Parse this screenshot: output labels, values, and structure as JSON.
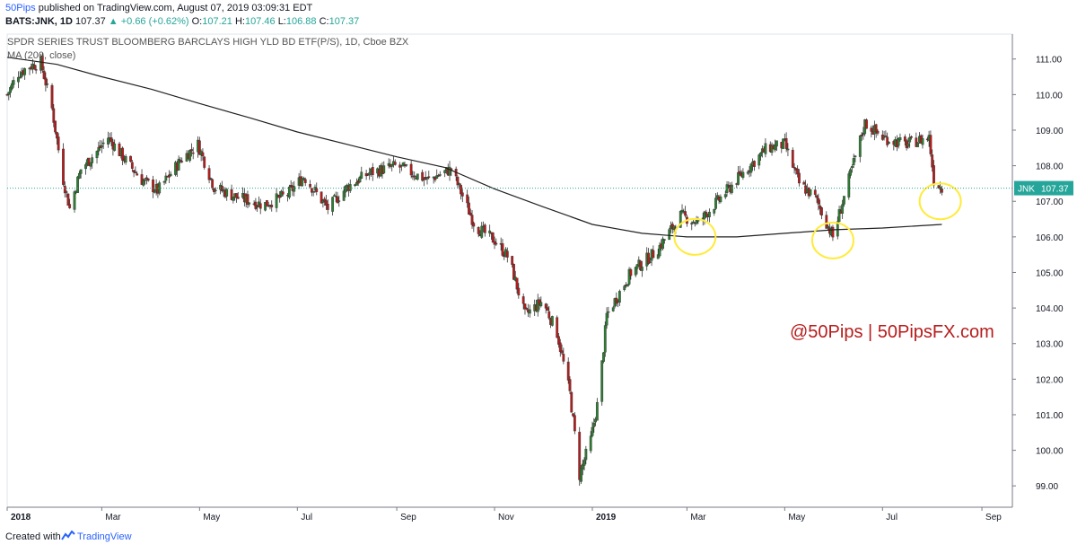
{
  "header": {
    "author": "50Pips",
    "published_text": "published on TradingView.com, August 07, 2019 03:09:31 EDT",
    "symbol_line": "BATS:JNK, 1D",
    "last": "107.37",
    "change": "+0.66 (+0.62%)",
    "o_label": "O:",
    "o_value": "107.21",
    "h_label": "H:",
    "h_value": "107.46",
    "l_label": "L:",
    "l_value": "106.88",
    "c_label": "C:",
    "c_value": "107.37"
  },
  "footer": {
    "created_with": "Created with",
    "brand": "TradingView"
  },
  "colors": {
    "up": "#26a69a",
    "down": "#c62828",
    "candle_up": "#2e7d32",
    "candle_down": "#b71c1c",
    "ma": "#212121",
    "price_tag": "#26a69a",
    "highlight": "#ffeb3b",
    "watermark": "#b71c1c"
  },
  "chart_data": {
    "type": "candlestick",
    "title": "SPDR SERIES TRUST BLOOMBERG BARCLAYS HIGH YLD BD ETF(P/S), 1D, Cboe BZX",
    "indicator_label": "MA (200, close)",
    "watermark": "@50Pips | 50PipsFX.com",
    "last_price_label": "JNK",
    "last_price_value": "107.37",
    "last_price": 107.37,
    "ylim": [
      98.4,
      111.7
    ],
    "y_ticks": [
      "99.00",
      "100.00",
      "101.00",
      "102.00",
      "103.00",
      "104.00",
      "105.00",
      "106.00",
      "107.00",
      "108.00",
      "109.00",
      "110.00",
      "111.00"
    ],
    "x_ticks": [
      "2018",
      "Mar",
      "May",
      "Jul",
      "Sep",
      "Nov",
      "2019",
      "Mar",
      "May",
      "Jul",
      "Sep"
    ],
    "x_tick_dates": [
      "2018-01-01",
      "2018-03-01",
      "2018-05-01",
      "2018-07-01",
      "2018-09-01",
      "2018-11-01",
      "2019-01-01",
      "2019-03-01",
      "2019-05-01",
      "2019-07-01",
      "2019-09-01"
    ],
    "x_range": [
      "2018-01-01",
      "2019-09-20"
    ],
    "price_path": [
      [
        "2018-01-01",
        110.0
      ],
      [
        "2018-01-08",
        110.6
      ],
      [
        "2018-01-15",
        110.8
      ],
      [
        "2018-01-22",
        110.9
      ],
      [
        "2018-01-29",
        109.6
      ],
      [
        "2018-02-05",
        107.6
      ],
      [
        "2018-02-09",
        106.8
      ],
      [
        "2018-02-16",
        107.9
      ],
      [
        "2018-02-26",
        108.4
      ],
      [
        "2018-03-05",
        108.8
      ],
      [
        "2018-03-15",
        108.2
      ],
      [
        "2018-03-26",
        107.6
      ],
      [
        "2018-04-05",
        107.3
      ],
      [
        "2018-04-20",
        108.2
      ],
      [
        "2018-04-30",
        108.6
      ],
      [
        "2018-05-10",
        107.4
      ],
      [
        "2018-05-25",
        107.1
      ],
      [
        "2018-06-10",
        106.9
      ],
      [
        "2018-06-25",
        107.2
      ],
      [
        "2018-07-05",
        107.7
      ],
      [
        "2018-07-20",
        106.8
      ],
      [
        "2018-08-01",
        107.4
      ],
      [
        "2018-08-15",
        107.8
      ],
      [
        "2018-09-01",
        108.0
      ],
      [
        "2018-09-20",
        107.6
      ],
      [
        "2018-10-05",
        107.9
      ],
      [
        "2018-10-20",
        106.3
      ],
      [
        "2018-11-01",
        105.9
      ],
      [
        "2018-11-10",
        105.4
      ],
      [
        "2018-11-20",
        103.8
      ],
      [
        "2018-12-01",
        104.2
      ],
      [
        "2018-12-10",
        103.3
      ],
      [
        "2018-12-18",
        101.6
      ],
      [
        "2018-12-24",
        99.3
      ],
      [
        "2018-12-31",
        100.3
      ],
      [
        "2019-01-05",
        101.5
      ],
      [
        "2019-01-10",
        103.8
      ],
      [
        "2019-01-25",
        105.0
      ],
      [
        "2019-02-10",
        105.6
      ],
      [
        "2019-02-25",
        106.6
      ],
      [
        "2019-03-08",
        106.4
      ],
      [
        "2019-03-20",
        107.0
      ],
      [
        "2019-04-05",
        107.8
      ],
      [
        "2019-04-20",
        108.5
      ],
      [
        "2019-05-01",
        108.6
      ],
      [
        "2019-05-10",
        107.5
      ],
      [
        "2019-05-20",
        107.1
      ],
      [
        "2019-05-31",
        106.0
      ],
      [
        "2019-06-10",
        107.6
      ],
      [
        "2019-06-20",
        109.2
      ],
      [
        "2019-07-01",
        108.8
      ],
      [
        "2019-07-15",
        108.6
      ],
      [
        "2019-07-30",
        108.8
      ],
      [
        "2019-08-02",
        107.6
      ],
      [
        "2019-08-07",
        107.37
      ]
    ],
    "ma_path": [
      [
        "2018-01-01",
        111.05
      ],
      [
        "2018-02-01",
        110.85
      ],
      [
        "2018-03-01",
        110.5
      ],
      [
        "2018-04-01",
        110.15
      ],
      [
        "2018-05-01",
        109.75
      ],
      [
        "2018-06-01",
        109.35
      ],
      [
        "2018-07-01",
        108.95
      ],
      [
        "2018-08-01",
        108.6
      ],
      [
        "2018-09-01",
        108.25
      ],
      [
        "2018-10-01",
        107.95
      ],
      [
        "2018-11-01",
        107.35
      ],
      [
        "2018-12-01",
        106.85
      ],
      [
        "2019-01-01",
        106.35
      ],
      [
        "2019-02-01",
        106.1
      ],
      [
        "2019-03-01",
        106.0
      ],
      [
        "2019-04-01",
        106.0
      ],
      [
        "2019-05-01",
        106.1
      ],
      [
        "2019-06-01",
        106.2
      ],
      [
        "2019-07-01",
        106.25
      ],
      [
        "2019-08-07",
        106.35
      ]
    ],
    "highlights": [
      {
        "date": "2019-03-06",
        "price": 106.0
      },
      {
        "date": "2019-05-31",
        "price": 105.9
      },
      {
        "date": "2019-08-06",
        "price": 107.0
      }
    ]
  }
}
